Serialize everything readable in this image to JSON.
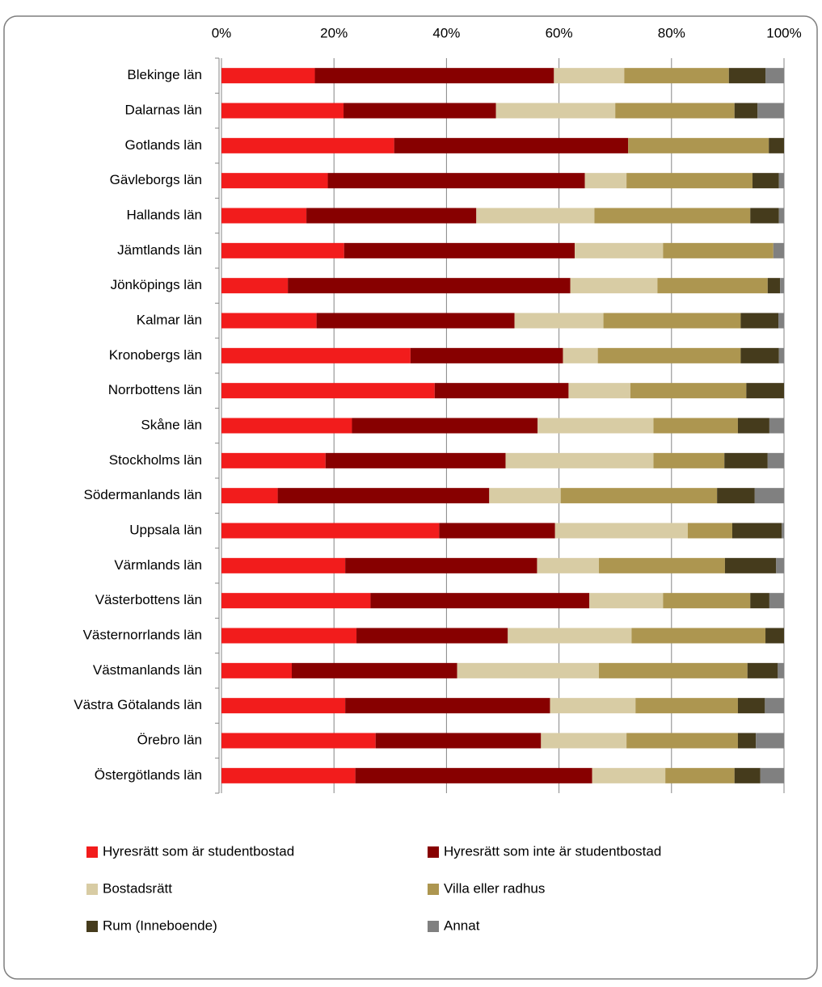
{
  "chart_data": {
    "type": "stacked-bar-horizontal",
    "categories": [
      "Blekinge län",
      "Dalarnas län",
      "Gotlands län",
      "Gävleborgs län",
      "Hallands län",
      "Jämtlands län",
      "Jönköpings län",
      "Kalmar län",
      "Kronobergs län",
      "Norrbottens län",
      "Skåne län",
      "Stockholms län",
      "Södermanlands län",
      "Uppsala län",
      "Värmlands län",
      "Västerbottens län",
      "Västernorrlands län",
      "Västmanlands län",
      "Västra Götalands län",
      "Örebro län",
      "Östergötlands län"
    ],
    "series": [
      {
        "name": "Hyresrätt som är studentbostad",
        "color": "#f21c1c",
        "values": [
          16.6,
          21.7,
          30.7,
          18.9,
          15.1,
          21.8,
          11.8,
          16.9,
          33.6,
          37.9,
          23.2,
          18.5,
          10.0,
          38.7,
          22.0,
          26.5,
          24.0,
          12.5,
          22.0,
          27.4,
          23.8
        ]
      },
      {
        "name": "Hyresrätt som inte är studentbostad",
        "color": "#870000",
        "values": [
          42.5,
          27.1,
          41.6,
          45.7,
          30.2,
          41.0,
          50.2,
          35.2,
          27.1,
          23.8,
          33.0,
          32.0,
          37.6,
          20.6,
          34.1,
          38.9,
          26.9,
          29.4,
          36.4,
          29.4,
          42.1
        ]
      },
      {
        "name": "Bostadsrätt",
        "color": "#d8cca4",
        "values": [
          12.5,
          21.2,
          0,
          7.4,
          21.0,
          15.7,
          15.5,
          15.8,
          6.2,
          11.0,
          20.6,
          26.3,
          12.7,
          23.6,
          11.0,
          13.1,
          22.0,
          25.2,
          15.2,
          15.2,
          13.0
        ]
      },
      {
        "name": "Villa eller radhus",
        "color": "#ad9650",
        "values": [
          18.6,
          21.2,
          25.0,
          22.4,
          27.7,
          19.6,
          19.6,
          24.4,
          25.4,
          20.6,
          15.0,
          12.6,
          27.8,
          7.9,
          22.4,
          15.5,
          23.8,
          26.4,
          18.2,
          19.8,
          12.3
        ]
      },
      {
        "name": "Rum (Inneboende)",
        "color": "#453b1c",
        "values": [
          6.5,
          4.1,
          2.7,
          4.7,
          5.1,
          0,
          2.2,
          6.7,
          6.8,
          6.7,
          5.6,
          7.7,
          6.7,
          8.8,
          9.1,
          3.4,
          3.3,
          5.4,
          4.8,
          3.2,
          4.6
        ]
      },
      {
        "name": "Annat",
        "color": "#808080",
        "values": [
          3.3,
          4.7,
          0,
          0.9,
          0.9,
          1.9,
          0.7,
          1.0,
          0.9,
          0,
          2.6,
          2.9,
          5.2,
          0.4,
          1.4,
          2.6,
          0,
          1.1,
          3.4,
          5.0,
          4.2
        ]
      }
    ],
    "xlim": [
      0,
      100
    ],
    "xticks": [
      {
        "value": 0,
        "label": "0%"
      },
      {
        "value": 20,
        "label": "20%"
      },
      {
        "value": 40,
        "label": "40%"
      },
      {
        "value": 60,
        "label": "60%"
      },
      {
        "value": 80,
        "label": "80%"
      },
      {
        "value": 100,
        "label": "100%"
      }
    ],
    "grid": true
  }
}
